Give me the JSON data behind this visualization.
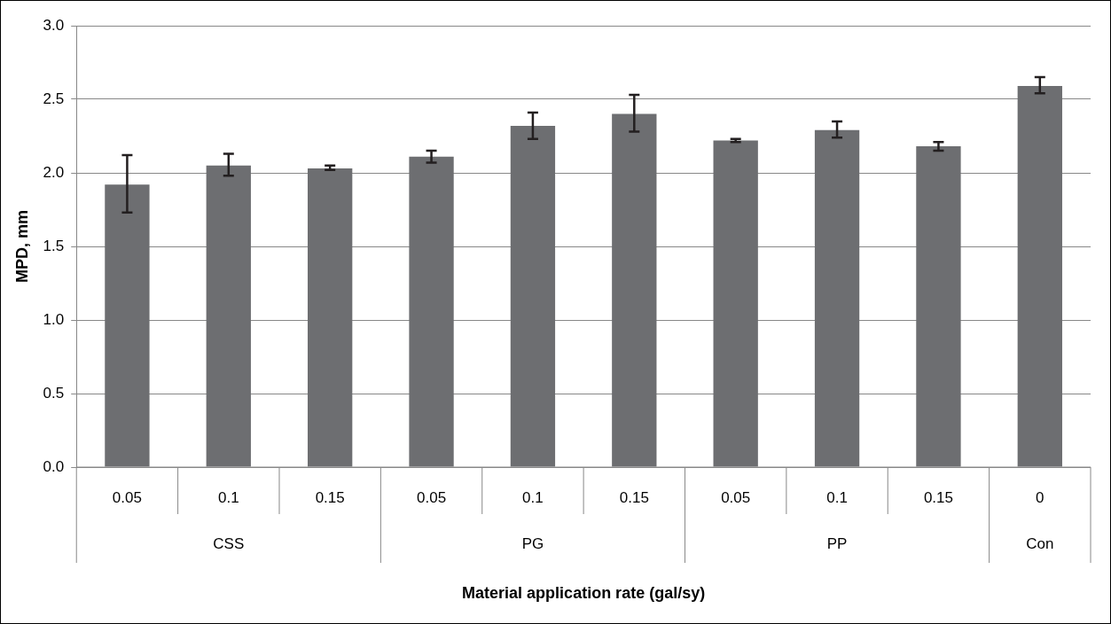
{
  "chart_data": {
    "type": "bar",
    "categories": [
      "0.05",
      "0.1",
      "0.15",
      "0.05",
      "0.1",
      "0.15",
      "0.05",
      "0.1",
      "0.15",
      "0"
    ],
    "values": [
      1.92,
      2.05,
      2.03,
      2.11,
      2.32,
      2.4,
      2.22,
      2.29,
      2.18,
      2.59
    ],
    "errors": [
      [
        1.73,
        2.12
      ],
      [
        1.98,
        2.13
      ],
      [
        2.02,
        2.05
      ],
      [
        2.07,
        2.15
      ],
      [
        2.23,
        2.41
      ],
      [
        2.28,
        2.53
      ],
      [
        2.21,
        2.23
      ],
      [
        2.24,
        2.35
      ],
      [
        2.15,
        2.21
      ],
      [
        2.54,
        2.65
      ]
    ],
    "color": "#6d6e71",
    "xlabel": "Material application rate (gal/sy)",
    "ylabel": "MPD, mm",
    "ylim": [
      0,
      3.0
    ],
    "yticks": [
      {
        "value": 0,
        "label": "0.0"
      },
      {
        "value": 0.5,
        "label": "0.5"
      },
      {
        "value": 1,
        "label": "1.0"
      },
      {
        "value": 1.5,
        "label": "1.5"
      },
      {
        "value": 2,
        "label": "2.0"
      },
      {
        "value": 2.5,
        "label": "2.5"
      },
      {
        "value": 3,
        "label": "3.0"
      }
    ],
    "annotations": [
      "CSS",
      "PG",
      "PP",
      "Con"
    ],
    "grid": "y",
    "legend": false
  }
}
